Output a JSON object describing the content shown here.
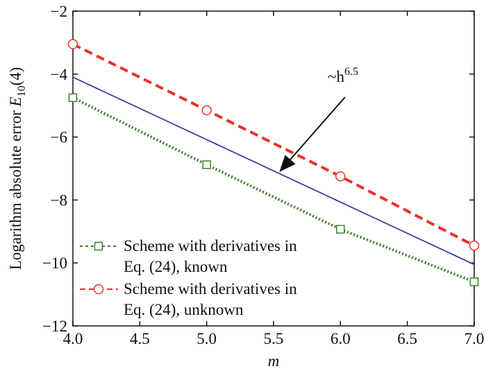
{
  "chart_data": {
    "type": "line",
    "x_label": "m",
    "y_label": {
      "text": "Logarithm absolute error ",
      "symbol": "E",
      "subscript": "10",
      "suffix": "(4)"
    },
    "annotation": {
      "text": "~h",
      "superscript": "6.5"
    },
    "xlim": [
      4,
      7
    ],
    "xticks": [
      {
        "value": 4,
        "label": "4.0"
      },
      4.5,
      {
        "value": 5,
        "label": "5.0"
      },
      5.5,
      {
        "value": 6,
        "label": "6.0"
      },
      6.5,
      {
        "value": 7,
        "label": "7.0"
      }
    ],
    "ylim": [
      -12,
      -2
    ],
    "yticks": [
      {
        "value": -12,
        "label": "−12"
      },
      {
        "value": -10,
        "label": "−10"
      },
      {
        "value": -8,
        "label": "−8"
      },
      {
        "value": -6,
        "label": "−6"
      },
      {
        "value": -4,
        "label": "−4"
      },
      {
        "value": -2,
        "label": "−2"
      }
    ],
    "series": [
      {
        "name": "Scheme with derivatives in Eq. (24), known",
        "color": "#3a7d2a",
        "style": "dotted",
        "marker": "square",
        "x": [
          4,
          5,
          6,
          7
        ],
        "values": [
          -4.75,
          -6.88,
          -8.93,
          -10.6
        ]
      },
      {
        "name": "Scheme with derivatives in Eq. (24), unknown",
        "color": "#e8332a",
        "style": "dashed",
        "marker": "circle",
        "x": [
          4,
          5,
          6,
          7
        ],
        "values": [
          -3.05,
          -5.15,
          -7.25,
          -9.45
        ]
      },
      {
        "color": "#3b3fa0",
        "style": "solid",
        "x": [
          4,
          7
        ],
        "values": [
          -4.1,
          -10.05
        ]
      }
    ]
  }
}
